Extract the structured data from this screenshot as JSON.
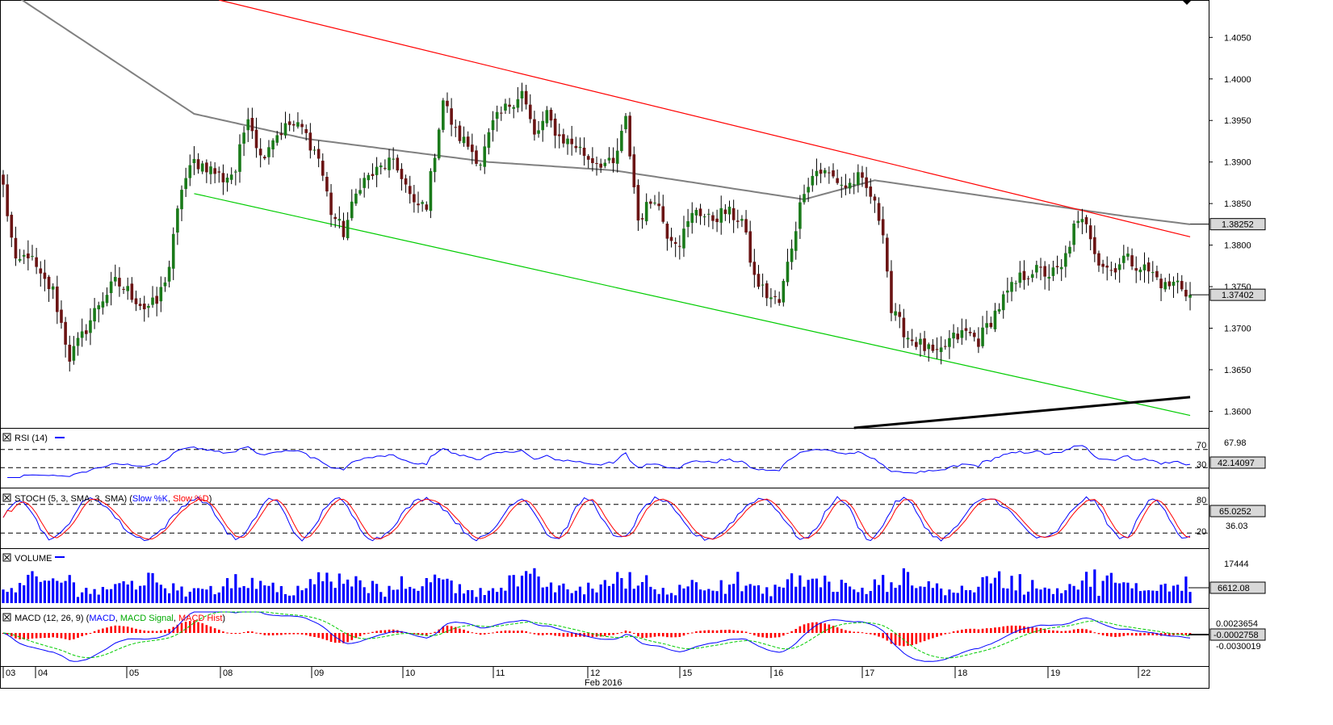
{
  "colors": {
    "bull": "#1a7a1a",
    "bear": "#6b1414",
    "wick": "#000000",
    "ma": "#808080",
    "resistance": "#ff0000",
    "support": "#00cc00",
    "trend": "#000000",
    "rsi": "#0000ff",
    "stoch_k": "#0000ff",
    "stoch_d": "#ff0000",
    "volume": "#0000ff",
    "macd": "#0000ff",
    "macd_signal": "#00cc00",
    "macd_hist": "#ff0000",
    "tag_bg": "#d8d8d8"
  },
  "price_axis": {
    "labels": [
      "1.4050",
      "1.4000",
      "1.3950",
      "1.3900",
      "1.3850",
      "1.3800",
      "1.3750",
      "1.3700",
      "1.3650",
      "1.3600"
    ],
    "current_ma": "1.38252",
    "current_price": "1.37402"
  },
  "rsi_panel": {
    "title": "RSI (14)",
    "levels": [
      "70",
      "30"
    ],
    "axis_label": "67.98",
    "value": "42.14097"
  },
  "stoch_panel": {
    "title": "STOCH (5, 3, SMA, 3, SMA)",
    "legend_k": "Slow %K",
    "legend_d": "Slow %D",
    "levels": [
      "80",
      "20"
    ],
    "axis_label": "36.03",
    "value": "65.0252"
  },
  "volume_panel": {
    "title": "VOLUME",
    "axis_label": "17444",
    "value": "6612.08"
  },
  "macd_panel": {
    "title_prefix": "MACD (12, 26, 9) (",
    "macd_label": "MACD",
    "signal_label": "MACD Signal",
    "hist_label": "MACD Hist",
    "title_suffix": ")",
    "axis_top": "0.0023654",
    "value": "-0.0002758",
    "axis_bottom": "-0.0030019"
  },
  "time_axis": {
    "labels": [
      "03",
      "04",
      "05",
      "08",
      "09",
      "10",
      "11",
      "12",
      "15",
      "16",
      "17",
      "18",
      "19",
      "22"
    ],
    "month": "Feb 2016"
  },
  "chart_data": {
    "type": "candlestick",
    "instrument_timeframe": "hourly candles",
    "y_range": [
      1.358,
      1.4095
    ],
    "x_labels": [
      "03",
      "04",
      "05",
      "08",
      "09",
      "10",
      "11",
      "12",
      "15",
      "16",
      "17",
      "18",
      "19",
      "22"
    ],
    "close_path": [
      [
        0,
        1.387
      ],
      [
        3,
        1.3775
      ],
      [
        6,
        1.379
      ],
      [
        9,
        1.376
      ],
      [
        12,
        1.3745
      ],
      [
        16,
        1.3665
      ],
      [
        19,
        1.369
      ],
      [
        23,
        1.373
      ],
      [
        27,
        1.3755
      ],
      [
        30,
        1.3745
      ],
      [
        34,
        1.3725
      ],
      [
        37,
        1.373
      ],
      [
        40,
        1.3775
      ],
      [
        43,
        1.387
      ],
      [
        46,
        1.39
      ],
      [
        49,
        1.3895
      ],
      [
        53,
        1.388
      ],
      [
        56,
        1.389
      ],
      [
        59,
        1.396
      ],
      [
        62,
        1.3905
      ],
      [
        65,
        1.393
      ],
      [
        69,
        1.3945
      ],
      [
        72,
        1.394
      ],
      [
        76,
        1.3905
      ],
      [
        79,
        1.384
      ],
      [
        82,
        1.3815
      ],
      [
        86,
        1.3875
      ],
      [
        89,
        1.3885
      ],
      [
        93,
        1.39
      ],
      [
        96,
        1.3885
      ],
      [
        99,
        1.3845
      ],
      [
        102,
        1.385
      ],
      [
        106,
        1.3975
      ],
      [
        109,
        1.3935
      ],
      [
        112,
        1.392
      ],
      [
        115,
        1.39
      ],
      [
        118,
        1.3945
      ],
      [
        122,
        1.397
      ],
      [
        125,
        1.3985
      ],
      [
        128,
        1.393
      ],
      [
        131,
        1.3955
      ],
      [
        134,
        1.393
      ],
      [
        138,
        1.392
      ],
      [
        141,
        1.3905
      ],
      [
        144,
        1.39
      ],
      [
        147,
        1.3895
      ],
      [
        150,
        1.395
      ],
      [
        153,
        1.383
      ],
      [
        157,
        1.386
      ],
      [
        160,
        1.3815
      ],
      [
        163,
        1.3805
      ],
      [
        167,
        1.3845
      ],
      [
        170,
        1.383
      ],
      [
        174,
        1.384
      ],
      [
        178,
        1.383
      ],
      [
        181,
        1.376
      ],
      [
        184,
        1.374
      ],
      [
        187,
        1.373
      ],
      [
        190,
        1.38
      ],
      [
        193,
        1.387
      ],
      [
        196,
        1.389
      ],
      [
        199,
        1.3885
      ],
      [
        203,
        1.387
      ],
      [
        206,
        1.388
      ],
      [
        209,
        1.386
      ],
      [
        212,
        1.382
      ],
      [
        214,
        1.372
      ],
      [
        218,
        1.369
      ],
      [
        221,
        1.368
      ],
      [
        225,
        1.3665
      ],
      [
        228,
        1.3685
      ],
      [
        232,
        1.3695
      ],
      [
        235,
        1.3685
      ],
      [
        238,
        1.371
      ],
      [
        241,
        1.3735
      ],
      [
        245,
        1.376
      ],
      [
        248,
        1.377
      ],
      [
        252,
        1.3765
      ],
      [
        255,
        1.377
      ],
      [
        258,
        1.382
      ],
      [
        261,
        1.383
      ],
      [
        264,
        1.378
      ],
      [
        267,
        1.377
      ],
      [
        270,
        1.3785
      ],
      [
        274,
        1.3775
      ],
      [
        277,
        1.3765
      ],
      [
        280,
        1.375
      ],
      [
        283,
        1.3755
      ],
      [
        286,
        1.374
      ]
    ],
    "moving_average": [
      [
        0,
        1.411
      ],
      [
        46,
        1.3958
      ],
      [
        73,
        1.3928
      ],
      [
        117,
        1.39
      ],
      [
        147,
        1.389
      ],
      [
        193,
        1.3855
      ],
      [
        210,
        1.3878
      ],
      [
        270,
        1.3835
      ],
      [
        286,
        1.3825
      ]
    ],
    "channel_upper": [
      [
        52,
        1.4095
      ],
      [
        286,
        1.381
      ]
    ],
    "channel_lower": [
      [
        46,
        1.3862
      ],
      [
        286,
        1.3595
      ]
    ],
    "trend_line": [
      [
        205,
        1.358
      ],
      [
        286,
        1.3617
      ]
    ],
    "last_close": 1.37402,
    "last_ma": 1.38252
  }
}
